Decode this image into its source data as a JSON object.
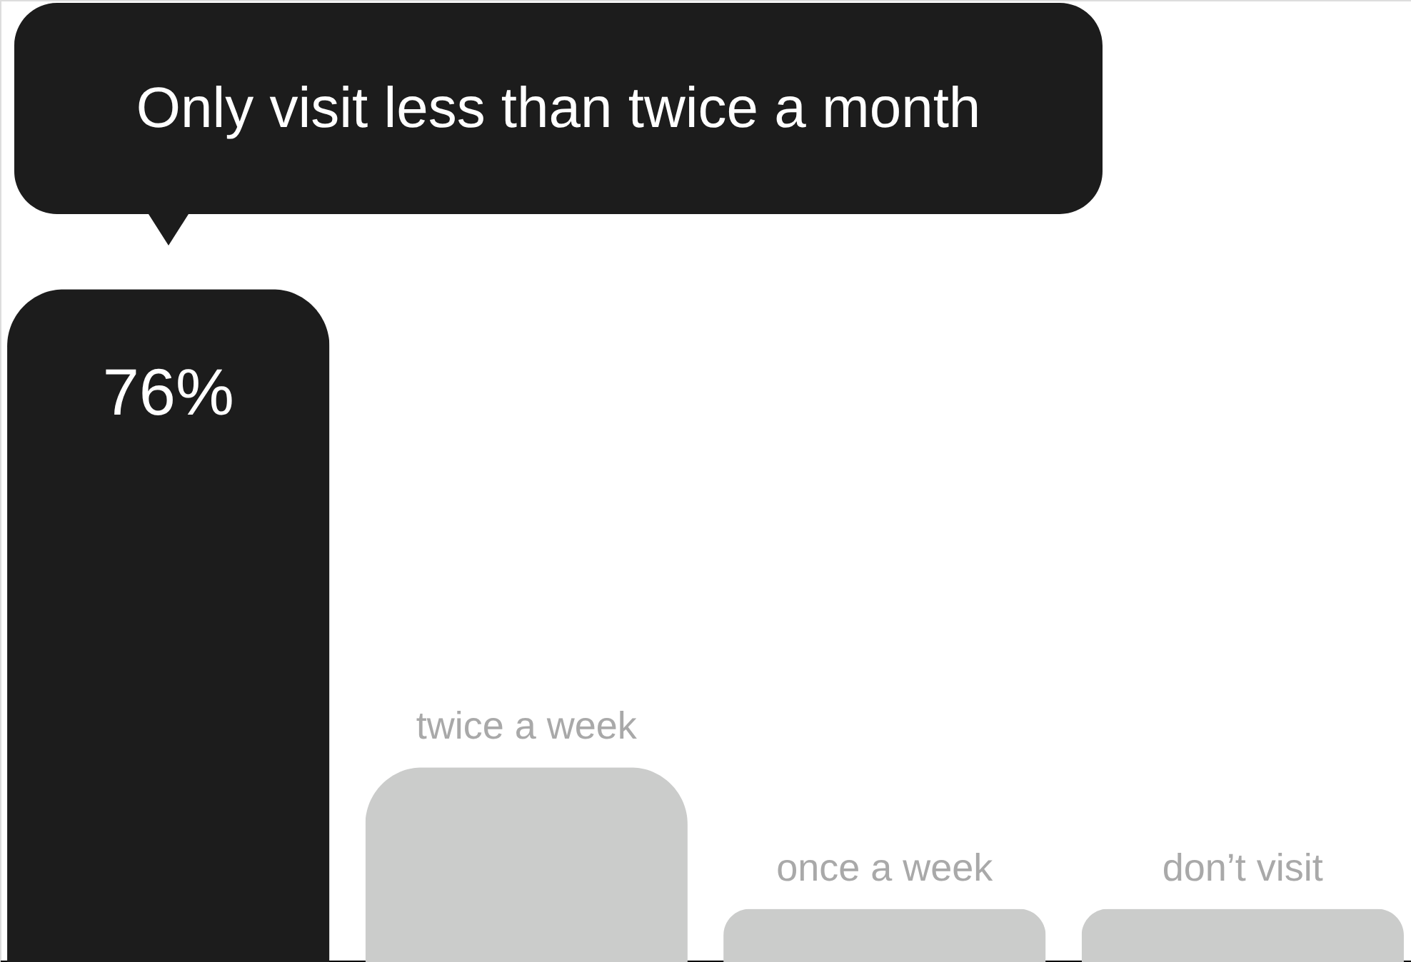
{
  "chart_data": {
    "type": "bar",
    "categories": [
      null,
      "twice a week",
      "once a week",
      "don’t visit"
    ],
    "annotations": [
      "Only visit less than twice a month"
    ],
    "values": [
      76,
      22,
      6,
      6
    ],
    "colors": [
      "#1c1c1c",
      "#cbcccb",
      "#cbcccb",
      "#cbcccb"
    ],
    "value_labels": [
      "76%",
      null,
      null,
      null
    ],
    "grid": false
  }
}
